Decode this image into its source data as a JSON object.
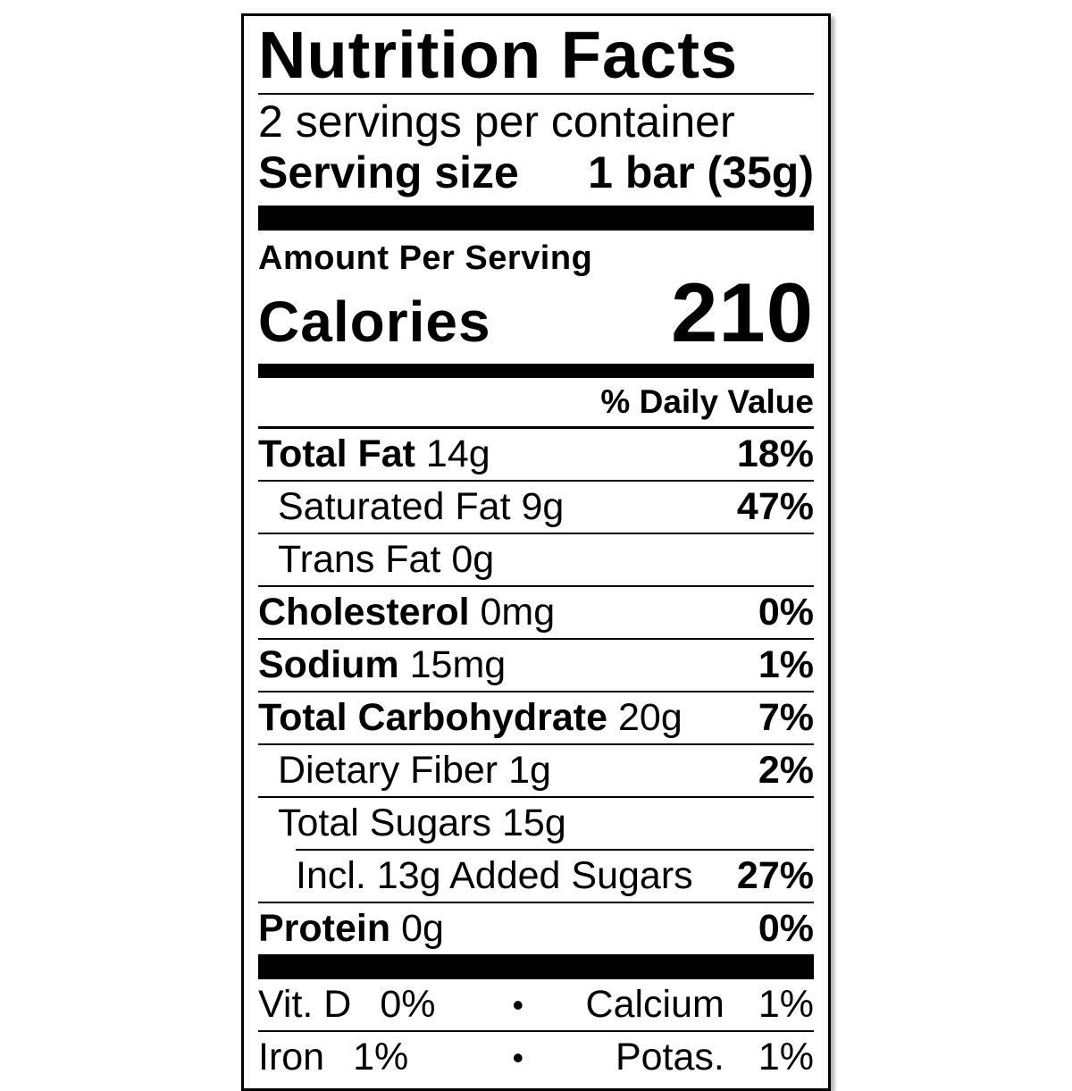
{
  "label": {
    "title": "Nutrition Facts",
    "servings_per_container": "2 servings per container",
    "serving_size_label": "Serving size",
    "serving_size_value": "1 bar (35g)",
    "amount_per_serving": "Amount Per Serving",
    "calories_label": "Calories",
    "calories_value": "210",
    "daily_value_header": "% Daily Value",
    "nutrients": [
      {
        "name": "Total Fat",
        "amount": "14g",
        "dv": "18%"
      },
      {
        "name": "Saturated Fat",
        "amount": "9g",
        "dv": "47%"
      },
      {
        "name": "Trans Fat",
        "amount": "0g",
        "dv": ""
      },
      {
        "name": "Cholesterol",
        "amount": "0mg",
        "dv": "0%"
      },
      {
        "name": "Sodium",
        "amount": "15mg",
        "dv": "1%"
      },
      {
        "name": "Total Carbohydrate",
        "amount": "20g",
        "dv": "7%"
      },
      {
        "name": "Dietary Fiber",
        "amount": "1g",
        "dv": "2%"
      },
      {
        "name": "Total Sugars",
        "amount": "15g",
        "dv": ""
      },
      {
        "name": "Incl. 13g Added Sugars",
        "amount": "",
        "dv": "27%"
      },
      {
        "name": "Protein",
        "amount": "0g",
        "dv": "0%"
      }
    ],
    "micronutrients": {
      "bullet": "•",
      "rows": [
        {
          "left_label": "Vit. D",
          "left_value": "0%",
          "right_label": "Calcium",
          "right_value": "1%"
        },
        {
          "left_label": "Iron",
          "left_value": "1%",
          "right_label": "Potas.",
          "right_value": "1%"
        }
      ]
    },
    "colors": {
      "text": "#000000",
      "background": "#ffffff"
    }
  }
}
